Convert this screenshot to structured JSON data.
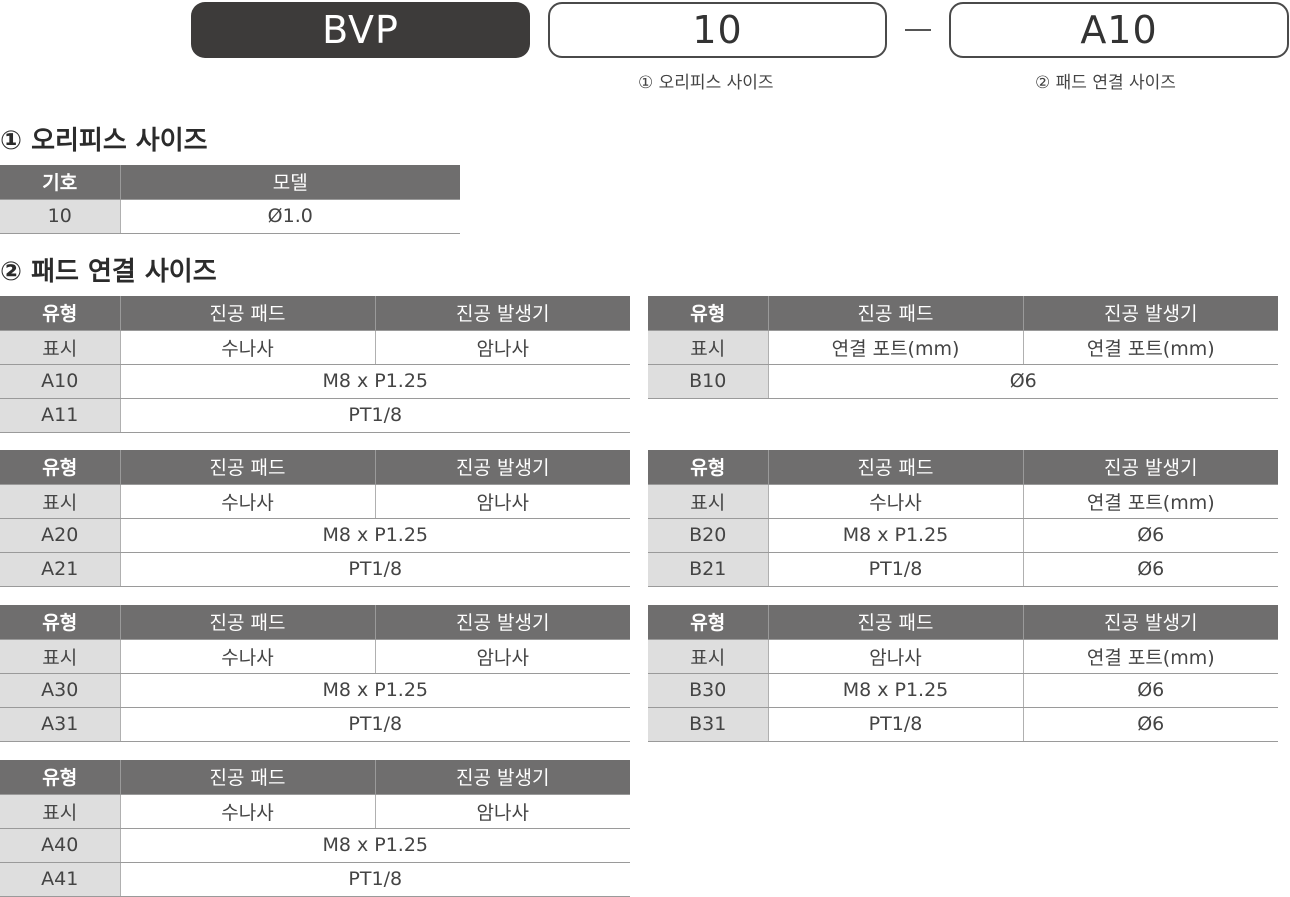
{
  "header": {
    "model": "BVP",
    "orifice_code": "10",
    "dash": "—",
    "pad_code": "A10",
    "orifice_caption": "① 오리피스 사이즈",
    "pad_caption": "② 패드 연결 사이즈"
  },
  "orifice_section": {
    "title": "① 오리피스 사이즈",
    "headers": [
      "기호",
      "모델"
    ],
    "rows": [
      [
        "10",
        "Ø1.0"
      ]
    ]
  },
  "pad_section": {
    "title": "② 패드 연결 사이즈",
    "tables": [
      {
        "headers": [
          "유형",
          "진공 패드",
          "진공 발생기"
        ],
        "rows": [
          [
            "표시",
            "수나사",
            "암나사"
          ],
          [
            "A10",
            "M8 x P1.25"
          ],
          [
            "A11",
            "PT1/8"
          ]
        ]
      },
      {
        "headers": [
          "유형",
          "진공 패드",
          "진공 발생기"
        ],
        "rows": [
          [
            "표시",
            "연결 포트(mm)",
            "연결 포트(mm)"
          ],
          [
            "B10",
            "Ø6"
          ]
        ]
      },
      {
        "headers": [
          "유형",
          "진공 패드",
          "진공 발생기"
        ],
        "rows": [
          [
            "표시",
            "수나사",
            "암나사"
          ],
          [
            "A20",
            "M8 x P1.25"
          ],
          [
            "A21",
            "PT1/8"
          ]
        ]
      },
      {
        "headers": [
          "유형",
          "진공 패드",
          "진공 발생기"
        ],
        "rows": [
          [
            "표시",
            "수나사",
            "연결 포트(mm)"
          ],
          [
            "B20",
            "M8 x P1.25",
            "Ø6"
          ],
          [
            "B21",
            "PT1/8",
            "Ø6"
          ]
        ]
      },
      {
        "headers": [
          "유형",
          "진공 패드",
          "진공 발생기"
        ],
        "rows": [
          [
            "표시",
            "수나사",
            "암나사"
          ],
          [
            "A30",
            "M8 x P1.25"
          ],
          [
            "A31",
            "PT1/8"
          ]
        ]
      },
      {
        "headers": [
          "유형",
          "진공 패드",
          "진공 발생기"
        ],
        "rows": [
          [
            "표시",
            "암나사",
            "연결 포트(mm)"
          ],
          [
            "B30",
            "M8 x P1.25",
            "Ø6"
          ],
          [
            "B31",
            "PT1/8",
            "Ø6"
          ]
        ]
      },
      {
        "headers": [
          "유형",
          "진공 패드",
          "진공 발생기"
        ],
        "rows": [
          [
            "표시",
            "수나사",
            "암나사"
          ],
          [
            "A40",
            "M8 x P1.25"
          ],
          [
            "A41",
            "PT1/8"
          ]
        ]
      }
    ]
  }
}
